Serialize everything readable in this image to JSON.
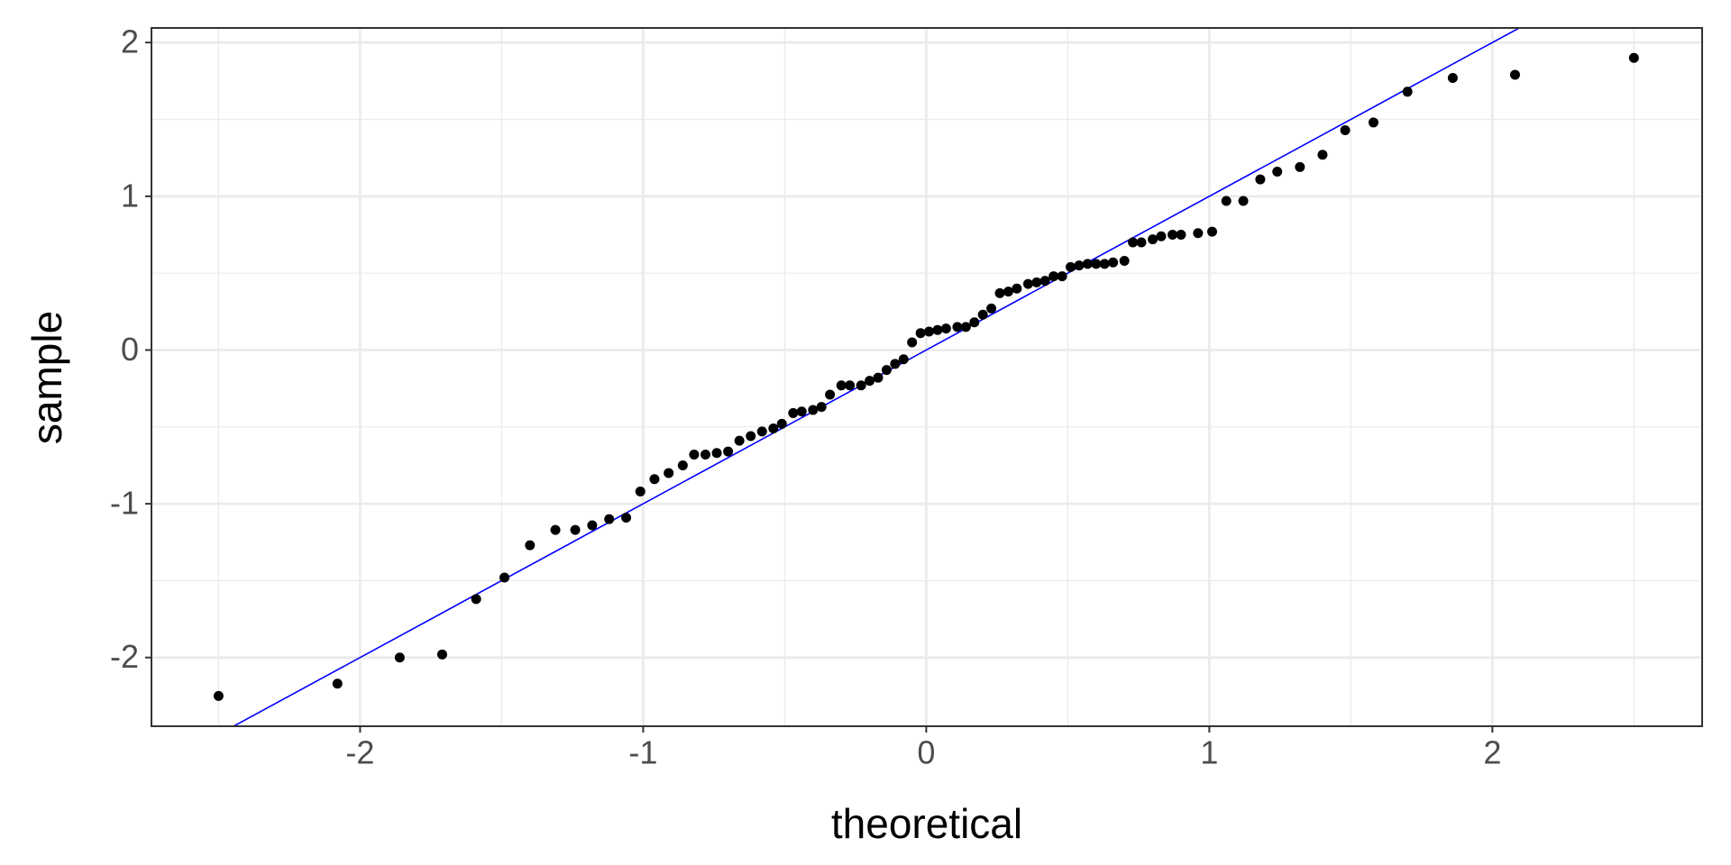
{
  "chart_data": {
    "type": "scatter",
    "x_label": "theoretical",
    "y_label": "sample",
    "x": [
      -2.5,
      -2.08,
      -1.86,
      -1.71,
      -1.59,
      -1.49,
      -1.4,
      -1.31,
      -1.24,
      -1.18,
      -1.12,
      -1.06,
      -1.01,
      -0.96,
      -0.91,
      -0.86,
      -0.82,
      -0.78,
      -0.74,
      -0.7,
      -0.66,
      -0.62,
      -0.58,
      -0.54,
      -0.51,
      -0.47,
      -0.44,
      -0.4,
      -0.37,
      -0.34,
      -0.3,
      -0.27,
      -0.23,
      -0.2,
      -0.17,
      -0.14,
      -0.11,
      -0.08,
      -0.05,
      -0.02,
      0.01,
      0.04,
      0.07,
      0.11,
      0.14,
      0.17,
      0.2,
      0.23,
      0.26,
      0.29,
      0.32,
      0.36,
      0.39,
      0.42,
      0.45,
      0.48,
      0.51,
      0.54,
      0.57,
      0.6,
      0.63,
      0.66,
      0.7,
      0.73,
      0.76,
      0.8,
      0.83,
      0.87,
      0.9,
      0.96,
      1.01,
      1.06,
      1.12,
      1.18,
      1.24,
      1.32,
      1.4,
      1.48,
      1.58,
      1.7,
      1.86,
      2.08,
      2.5
    ],
    "values": [
      -2.25,
      -2.17,
      -2.0,
      -1.98,
      -1.62,
      -1.48,
      -1.27,
      -1.17,
      -1.17,
      -1.14,
      -1.1,
      -1.09,
      -0.92,
      -0.84,
      -0.8,
      -0.75,
      -0.68,
      -0.68,
      -0.67,
      -0.66,
      -0.59,
      -0.56,
      -0.53,
      -0.51,
      -0.48,
      -0.41,
      -0.4,
      -0.39,
      -0.37,
      -0.29,
      -0.23,
      -0.23,
      -0.23,
      -0.2,
      -0.18,
      -0.13,
      -0.09,
      -0.06,
      0.05,
      0.11,
      0.12,
      0.13,
      0.14,
      0.15,
      0.15,
      0.18,
      0.23,
      0.27,
      0.37,
      0.38,
      0.4,
      0.43,
      0.44,
      0.45,
      0.48,
      0.48,
      0.54,
      0.55,
      0.56,
      0.56,
      0.56,
      0.57,
      0.58,
      0.7,
      0.7,
      0.72,
      0.74,
      0.75,
      0.75,
      0.76,
      0.77,
      0.97,
      0.97,
      1.11,
      1.16,
      1.19,
      1.27,
      1.43,
      1.48,
      1.68,
      1.77,
      1.79,
      1.9
    ],
    "color": "#000000",
    "reference_line": {
      "slope": 1,
      "intercept": 0,
      "color": "#0000ff"
    },
    "xlim": [
      -2.737,
      2.741
    ],
    "ylim": [
      -2.447,
      2.095
    ],
    "xticks": [
      -2,
      -1,
      0,
      1,
      2
    ],
    "yticks": [
      -2,
      -1,
      0,
      1,
      2
    ],
    "x_minor_grid": [
      -2.5,
      -1.5,
      -0.5,
      0.5,
      1.5,
      2.5
    ],
    "y_minor_grid": [
      -1.5,
      -0.5,
      0.5,
      1.5
    ],
    "grid": true
  }
}
